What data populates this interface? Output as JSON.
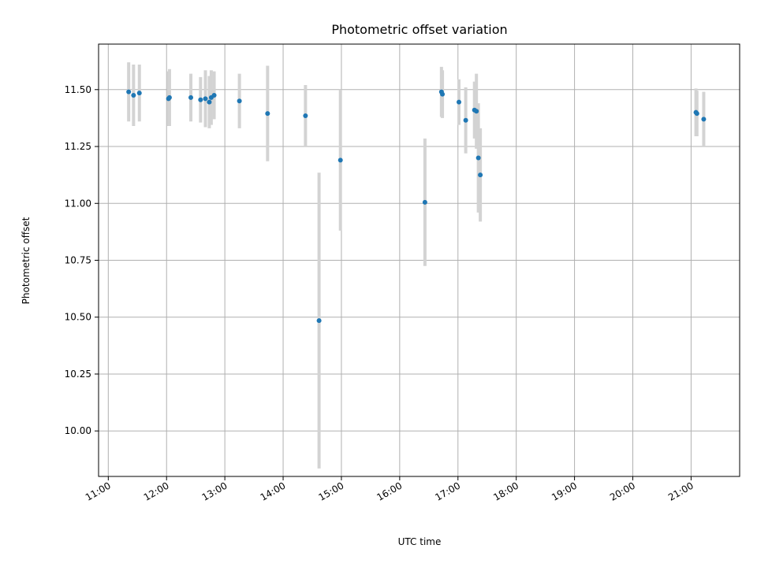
{
  "chart_data": {
    "type": "scatter",
    "title": "Photometric offset variation",
    "xlabel": "UTC time",
    "ylabel": "Photometric offset",
    "xlim": [
      "10:50",
      "21:50"
    ],
    "ylim": [
      9.8,
      11.7
    ],
    "grid": true,
    "x_ticks": [
      "11:00",
      "12:00",
      "13:00",
      "14:00",
      "15:00",
      "16:00",
      "17:00",
      "18:00",
      "19:00",
      "20:00",
      "21:00"
    ],
    "y_ticks": [
      "10.00",
      "10.25",
      "10.50",
      "10.75",
      "11.00",
      "11.25",
      "11.50"
    ],
    "colors": {
      "point": "#1f77b4",
      "errorbar": "#d3d3d3",
      "grid": "#b0b0b0"
    },
    "points": [
      {
        "x": "11:21",
        "y": 11.49,
        "err": 0.13
      },
      {
        "x": "11:26",
        "y": 11.475,
        "err": 0.135
      },
      {
        "x": "11:32",
        "y": 11.485,
        "err": 0.125
      },
      {
        "x": "12:02",
        "y": 11.46,
        "err": 0.12
      },
      {
        "x": "12:03",
        "y": 11.465,
        "err": 0.125
      },
      {
        "x": "12:25",
        "y": 11.465,
        "err": 0.105
      },
      {
        "x": "12:35",
        "y": 11.455,
        "err": 0.1
      },
      {
        "x": "12:40",
        "y": 11.46,
        "err": 0.125
      },
      {
        "x": "12:44",
        "y": 11.445,
        "err": 0.115
      },
      {
        "x": "12:46",
        "y": 11.465,
        "err": 0.12
      },
      {
        "x": "12:49",
        "y": 11.475,
        "err": 0.105
      },
      {
        "x": "13:15",
        "y": 11.45,
        "err": 0.12
      },
      {
        "x": "13:44",
        "y": 11.395,
        "err": 0.21
      },
      {
        "x": "14:23",
        "y": 11.385,
        "err": 0.135
      },
      {
        "x": "14:37",
        "y": 10.485,
        "err": 0.65
      },
      {
        "x": "14:59",
        "y": 11.19,
        "err": 0.31
      },
      {
        "x": "16:26",
        "y": 11.005,
        "err": 0.28
      },
      {
        "x": "16:43",
        "y": 11.49,
        "err": 0.11
      },
      {
        "x": "16:44",
        "y": 11.48,
        "err": 0.105
      },
      {
        "x": "17:01",
        "y": 11.445,
        "err": 0.1
      },
      {
        "x": "17:08",
        "y": 11.365,
        "err": 0.145
      },
      {
        "x": "17:17",
        "y": 11.41,
        "err": 0.125
      },
      {
        "x": "17:19",
        "y": 11.405,
        "err": 0.165
      },
      {
        "x": "17:21",
        "y": 11.2,
        "err": 0.24
      },
      {
        "x": "17:23",
        "y": 11.125,
        "err": 0.205
      },
      {
        "x": "21:05",
        "y": 11.4,
        "err": 0.105
      },
      {
        "x": "21:06",
        "y": 11.395,
        "err": 0.1
      },
      {
        "x": "21:13",
        "y": 11.37,
        "err": 0.12
      }
    ]
  }
}
